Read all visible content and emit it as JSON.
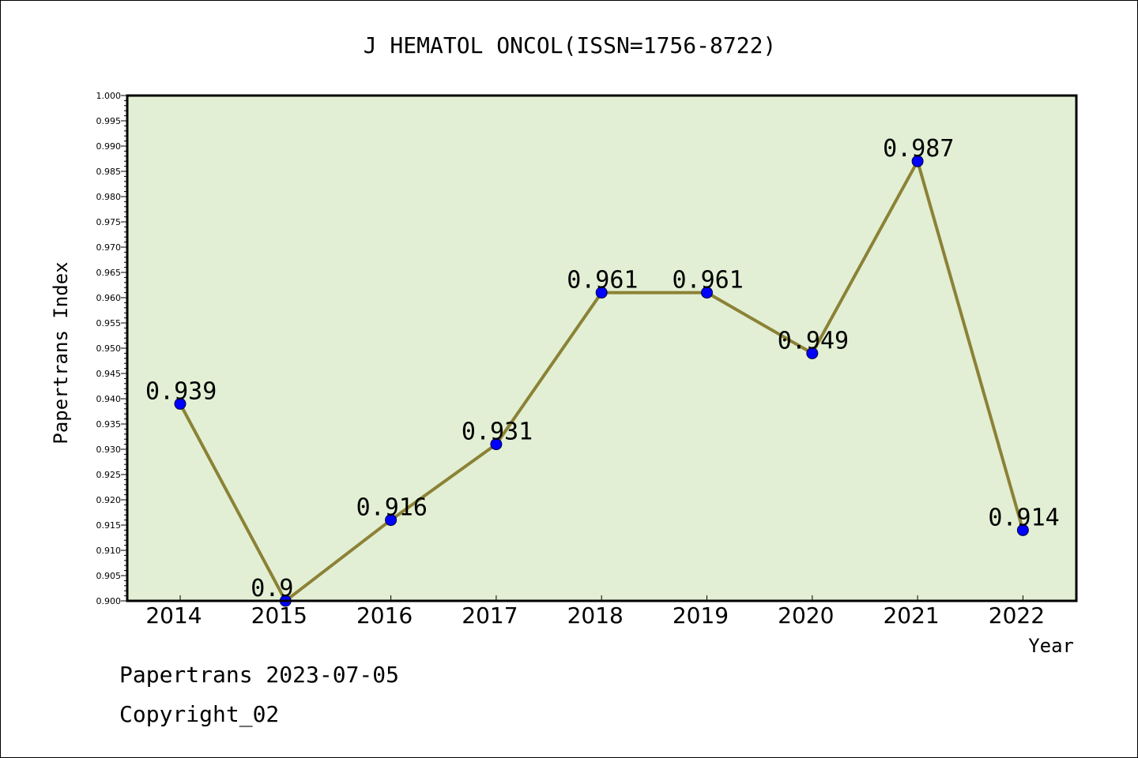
{
  "chart_data": {
    "type": "line",
    "title": "J HEMATOL ONCOL(ISSN=1756-8722)",
    "xlabel": "Year",
    "ylabel": "Papertrans Index",
    "categories": [
      "2014",
      "2015",
      "2016",
      "2017",
      "2018",
      "2019",
      "2020",
      "2021",
      "2022"
    ],
    "values": [
      0.939,
      0.9,
      0.916,
      0.931,
      0.961,
      0.961,
      0.949,
      0.987,
      0.914
    ],
    "data_labels": [
      "0.939",
      "0.9",
      "0.916",
      "0.931",
      "0.961",
      "0.961",
      "0.949",
      "0.987",
      "0.914"
    ],
    "ylim": [
      0.9,
      1.0
    ],
    "yticks": [
      "0.900",
      "0.905",
      "0.910",
      "0.915",
      "0.920",
      "0.925",
      "0.930",
      "0.935",
      "0.940",
      "0.945",
      "0.950",
      "0.955",
      "0.960",
      "0.965",
      "0.970",
      "0.975",
      "0.980",
      "0.985",
      "0.990",
      "0.995",
      "1.000"
    ],
    "grid": false,
    "colors": {
      "plot_background": "#e2efd4",
      "line": "#8b8236",
      "marker": "#0000ff"
    }
  },
  "footer": {
    "line1": "Papertrans 2023-07-05",
    "line2": "Copyright_02"
  }
}
